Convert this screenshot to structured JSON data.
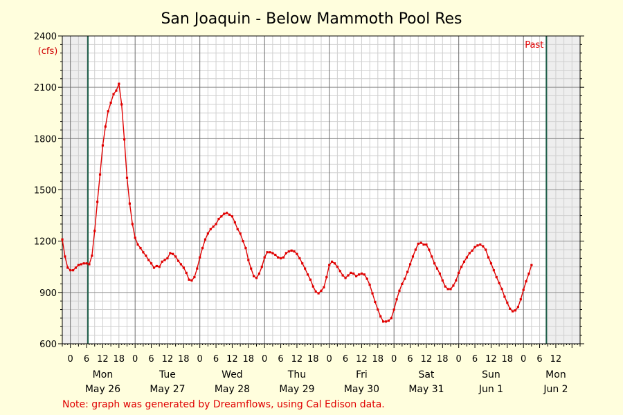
{
  "chart_data": {
    "type": "line",
    "title": "San Joaquin - Below Mammoth Pool Res",
    "unit_label": "(cfs)",
    "past_label": "Past",
    "note": "Note: graph was generated by Dreamflows, using Cal Edison data.",
    "ylim": [
      600,
      2400
    ],
    "yticks": [
      600,
      900,
      1200,
      1500,
      1800,
      2100,
      2400
    ],
    "xlim_hours": [
      -3,
      189
    ],
    "xticks": [
      {
        "h": 0,
        "label": "0"
      },
      {
        "h": 6,
        "label": "6"
      },
      {
        "h": 12,
        "label": "12"
      },
      {
        "h": 18,
        "label": "18"
      },
      {
        "h": 24,
        "label": "0"
      },
      {
        "h": 30,
        "label": "6"
      },
      {
        "h": 36,
        "label": "12"
      },
      {
        "h": 42,
        "label": "18"
      },
      {
        "h": 48,
        "label": "0"
      },
      {
        "h": 54,
        "label": "6"
      },
      {
        "h": 60,
        "label": "12"
      },
      {
        "h": 66,
        "label": "18"
      },
      {
        "h": 72,
        "label": "0"
      },
      {
        "h": 78,
        "label": "6"
      },
      {
        "h": 84,
        "label": "12"
      },
      {
        "h": 90,
        "label": "18"
      },
      {
        "h": 96,
        "label": "0"
      },
      {
        "h": 102,
        "label": "6"
      },
      {
        "h": 108,
        "label": "12"
      },
      {
        "h": 114,
        "label": "18"
      },
      {
        "h": 120,
        "label": "0"
      },
      {
        "h": 126,
        "label": "6"
      },
      {
        "h": 132,
        "label": "12"
      },
      {
        "h": 138,
        "label": "18"
      },
      {
        "h": 144,
        "label": "0"
      },
      {
        "h": 150,
        "label": "6"
      },
      {
        "h": 156,
        "label": "12"
      },
      {
        "h": 162,
        "label": "18"
      },
      {
        "h": 168,
        "label": "0"
      },
      {
        "h": 174,
        "label": "6"
      },
      {
        "h": 180,
        "label": "12"
      }
    ],
    "days": [
      {
        "h": 12,
        "weekday": "Mon",
        "date": "May 26"
      },
      {
        "h": 36,
        "weekday": "Tue",
        "date": "May 27"
      },
      {
        "h": 60,
        "weekday": "Wed",
        "date": "May 28"
      },
      {
        "h": 84,
        "weekday": "Thu",
        "date": "May 29"
      },
      {
        "h": 108,
        "weekday": "Fri",
        "date": "May 30"
      },
      {
        "h": 132,
        "weekday": "Sat",
        "date": "May 31"
      },
      {
        "h": 156,
        "weekday": "Sun",
        "date": "Jun 1"
      },
      {
        "h": 180,
        "weekday": "Mon",
        "date": "Jun 2"
      }
    ],
    "shaded_before_hour": 6.5,
    "shaded_after_hour": 176.5,
    "series": [
      {
        "color": "#e00000",
        "points": [
          [
            -3,
            1210
          ],
          [
            -2,
            1110
          ],
          [
            -1,
            1045
          ],
          [
            0,
            1030
          ],
          [
            1,
            1030
          ],
          [
            2,
            1045
          ],
          [
            3,
            1060
          ],
          [
            4,
            1065
          ],
          [
            5,
            1070
          ],
          [
            6,
            1070
          ],
          [
            7,
            1065
          ],
          [
            8,
            1115
          ],
          [
            9,
            1260
          ],
          [
            10,
            1430
          ],
          [
            11,
            1590
          ],
          [
            12,
            1760
          ],
          [
            13,
            1870
          ],
          [
            14,
            1960
          ],
          [
            15,
            2010
          ],
          [
            16,
            2060
          ],
          [
            17,
            2080
          ],
          [
            18,
            2120
          ],
          [
            19,
            2000
          ],
          [
            20,
            1795
          ],
          [
            21,
            1570
          ],
          [
            22,
            1420
          ],
          [
            23,
            1300
          ],
          [
            24,
            1220
          ],
          [
            25,
            1180
          ],
          [
            26,
            1160
          ],
          [
            27,
            1135
          ],
          [
            28,
            1115
          ],
          [
            29,
            1090
          ],
          [
            30,
            1070
          ],
          [
            31,
            1045
          ],
          [
            32,
            1055
          ],
          [
            33,
            1050
          ],
          [
            34,
            1080
          ],
          [
            35,
            1090
          ],
          [
            36,
            1100
          ],
          [
            37,
            1130
          ],
          [
            38,
            1125
          ],
          [
            39,
            1110
          ],
          [
            40,
            1085
          ],
          [
            41,
            1065
          ],
          [
            42,
            1045
          ],
          [
            43,
            1015
          ],
          [
            44,
            975
          ],
          [
            45,
            970
          ],
          [
            46,
            990
          ],
          [
            47,
            1040
          ],
          [
            48,
            1105
          ],
          [
            49,
            1160
          ],
          [
            50,
            1210
          ],
          [
            51,
            1245
          ],
          [
            52,
            1270
          ],
          [
            53,
            1285
          ],
          [
            54,
            1300
          ],
          [
            55,
            1330
          ],
          [
            56,
            1345
          ],
          [
            57,
            1360
          ],
          [
            58,
            1365
          ],
          [
            59,
            1355
          ],
          [
            60,
            1345
          ],
          [
            61,
            1310
          ],
          [
            62,
            1270
          ],
          [
            63,
            1245
          ],
          [
            64,
            1200
          ],
          [
            65,
            1160
          ],
          [
            66,
            1090
          ],
          [
            67,
            1040
          ],
          [
            68,
            995
          ],
          [
            69,
            985
          ],
          [
            70,
            1010
          ],
          [
            71,
            1050
          ],
          [
            72,
            1105
          ],
          [
            73,
            1135
          ],
          [
            74,
            1135
          ],
          [
            75,
            1130
          ],
          [
            76,
            1120
          ],
          [
            77,
            1105
          ],
          [
            78,
            1100
          ],
          [
            79,
            1105
          ],
          [
            80,
            1130
          ],
          [
            81,
            1140
          ],
          [
            82,
            1145
          ],
          [
            83,
            1140
          ],
          [
            84,
            1125
          ],
          [
            85,
            1100
          ],
          [
            86,
            1070
          ],
          [
            87,
            1040
          ],
          [
            88,
            1005
          ],
          [
            89,
            975
          ],
          [
            90,
            935
          ],
          [
            91,
            905
          ],
          [
            92,
            895
          ],
          [
            93,
            910
          ],
          [
            94,
            930
          ],
          [
            95,
            990
          ],
          [
            96,
            1060
          ],
          [
            97,
            1080
          ],
          [
            98,
            1070
          ],
          [
            99,
            1050
          ],
          [
            100,
            1025
          ],
          [
            101,
            1000
          ],
          [
            102,
            985
          ],
          [
            103,
            1000
          ],
          [
            104,
            1015
          ],
          [
            105,
            1010
          ],
          [
            106,
            995
          ],
          [
            107,
            1005
          ],
          [
            108,
            1010
          ],
          [
            109,
            1005
          ],
          [
            110,
            980
          ],
          [
            111,
            945
          ],
          [
            112,
            895
          ],
          [
            113,
            845
          ],
          [
            114,
            800
          ],
          [
            115,
            760
          ],
          [
            116,
            730
          ],
          [
            117,
            730
          ],
          [
            118,
            735
          ],
          [
            119,
            750
          ],
          [
            120,
            800
          ],
          [
            121,
            860
          ],
          [
            122,
            910
          ],
          [
            123,
            950
          ],
          [
            124,
            980
          ],
          [
            125,
            1020
          ],
          [
            126,
            1065
          ],
          [
            127,
            1110
          ],
          [
            128,
            1150
          ],
          [
            129,
            1185
          ],
          [
            130,
            1190
          ],
          [
            131,
            1180
          ],
          [
            132,
            1180
          ],
          [
            133,
            1150
          ],
          [
            134,
            1110
          ],
          [
            135,
            1070
          ],
          [
            136,
            1040
          ],
          [
            137,
            1010
          ],
          [
            138,
            970
          ],
          [
            139,
            935
          ],
          [
            140,
            920
          ],
          [
            141,
            920
          ],
          [
            142,
            940
          ],
          [
            143,
            970
          ],
          [
            144,
            1015
          ],
          [
            145,
            1050
          ],
          [
            146,
            1080
          ],
          [
            147,
            1105
          ],
          [
            148,
            1130
          ],
          [
            149,
            1145
          ],
          [
            150,
            1165
          ],
          [
            151,
            1175
          ],
          [
            152,
            1180
          ],
          [
            153,
            1170
          ],
          [
            154,
            1150
          ],
          [
            155,
            1105
          ],
          [
            156,
            1070
          ],
          [
            157,
            1030
          ],
          [
            158,
            990
          ],
          [
            159,
            955
          ],
          [
            160,
            920
          ],
          [
            161,
            875
          ],
          [
            162,
            840
          ],
          [
            163,
            805
          ],
          [
            164,
            790
          ],
          [
            165,
            795
          ],
          [
            166,
            815
          ],
          [
            167,
            860
          ],
          [
            168,
            915
          ],
          [
            169,
            965
          ],
          [
            170,
            1010
          ],
          [
            171,
            1060
          ]
        ]
      }
    ]
  }
}
